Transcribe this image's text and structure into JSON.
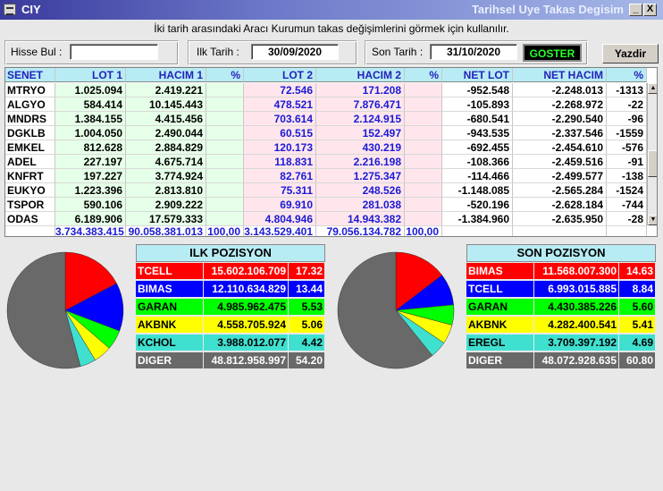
{
  "window": {
    "title_left": "CIY",
    "title_right": "Tarihsel Uye Takas Degisim",
    "minimize_label": "_",
    "close_label": "X"
  },
  "subtitle": "İki tarih arasındaki  Aracı Kurumun takas değişimlerini görmek için kullanılır.",
  "search": {
    "label": "Hisse Bul :",
    "value": ""
  },
  "start_date": {
    "label": "Ilk Tarih :",
    "value": "30/09/2020"
  },
  "end_date": {
    "label": "Son Tarih :",
    "value": "31/10/2020"
  },
  "buttons": {
    "goster": "GOSTER",
    "yazdir": "Yazdir"
  },
  "table": {
    "headers": [
      "SENET",
      "LOT 1",
      "HACIM 1",
      "%",
      "LOT 2",
      "HACIM 2",
      "%",
      "NET LOT",
      "NET HACIM",
      "%"
    ],
    "rows": [
      [
        "MTRYO",
        "1.025.094",
        "2.419.221",
        "",
        "72.546",
        "171.208",
        "",
        "-952.548",
        "-2.248.013",
        "-1313"
      ],
      [
        "ALGYO",
        "584.414",
        "10.145.443",
        "",
        "478.521",
        "7.876.471",
        "",
        "-105.893",
        "-2.268.972",
        "-22"
      ],
      [
        "MNDRS",
        "1.384.155",
        "4.415.456",
        "",
        "703.614",
        "2.124.915",
        "",
        "-680.541",
        "-2.290.540",
        "-96"
      ],
      [
        "DGKLB",
        "1.004.050",
        "2.490.044",
        "",
        "60.515",
        "152.497",
        "",
        "-943.535",
        "-2.337.546",
        "-1559"
      ],
      [
        "EMKEL",
        "812.628",
        "2.884.829",
        "",
        "120.173",
        "430.219",
        "",
        "-692.455",
        "-2.454.610",
        "-576"
      ],
      [
        "ADEL",
        "227.197",
        "4.675.714",
        "",
        "118.831",
        "2.216.198",
        "",
        "-108.366",
        "-2.459.516",
        "-91"
      ],
      [
        "KNFRT",
        "197.227",
        "3.774.924",
        "",
        "82.761",
        "1.275.347",
        "",
        "-114.466",
        "-2.499.577",
        "-138"
      ],
      [
        "EUKYO",
        "1.223.396",
        "2.813.810",
        "",
        "75.311",
        "248.526",
        "",
        "-1.148.085",
        "-2.565.284",
        "-1524"
      ],
      [
        "TSPOR",
        "590.106",
        "2.909.222",
        "",
        "69.910",
        "281.038",
        "",
        "-520.196",
        "-2.628.184",
        "-744"
      ],
      [
        "ODAS",
        "6.189.906",
        "17.579.333",
        "",
        "4.804.946",
        "14.943.382",
        "",
        "-1.384.960",
        "-2.635.950",
        "-28"
      ]
    ],
    "totals": [
      "",
      "3.734.383.415",
      "90.058.381.013",
      "100,00",
      "3.143.529.401",
      "79.056.134.782",
      "100,00",
      "",
      "",
      ""
    ]
  },
  "ilk_pozisyon": {
    "title": "ILK POZISYON",
    "rows": [
      {
        "name": "TCELL",
        "value": "15.602.106.709",
        "pct": "17.32",
        "pct_num": 17.32,
        "color": "#ff0000",
        "text": "#ffffff"
      },
      {
        "name": "BIMAS",
        "value": "12.110.634.829",
        "pct": "13.44",
        "pct_num": 13.44,
        "color": "#0000ff",
        "text": "#ffffff"
      },
      {
        "name": "GARAN",
        "value": "4.985.962.475",
        "pct": "5.53",
        "pct_num": 5.53,
        "color": "#00ff00",
        "text": "#000000"
      },
      {
        "name": "AKBNK",
        "value": "4.558.705.924",
        "pct": "5.06",
        "pct_num": 5.06,
        "color": "#ffff00",
        "text": "#000000"
      },
      {
        "name": "KCHOL",
        "value": "3.988.012.077",
        "pct": "4.42",
        "pct_num": 4.42,
        "color": "#40e0d0",
        "text": "#000000"
      },
      {
        "name": "DIGER",
        "value": "48.812.958.997",
        "pct": "54.20",
        "pct_num": 54.2,
        "color": "#696969",
        "text": "#ffffff"
      }
    ]
  },
  "son_pozisyon": {
    "title": "SON POZISYON",
    "rows": [
      {
        "name": "BIMAS",
        "value": "11.568.007.300",
        "pct": "14.63",
        "pct_num": 14.63,
        "color": "#ff0000",
        "text": "#ffffff"
      },
      {
        "name": "TCELL",
        "value": "6.993.015.885",
        "pct": "8.84",
        "pct_num": 8.84,
        "color": "#0000ff",
        "text": "#ffffff"
      },
      {
        "name": "GARAN",
        "value": "4.430.385.226",
        "pct": "5.60",
        "pct_num": 5.6,
        "color": "#00ff00",
        "text": "#000000"
      },
      {
        "name": "AKBNK",
        "value": "4.282.400.541",
        "pct": "5.41",
        "pct_num": 5.41,
        "color": "#ffff00",
        "text": "#000000"
      },
      {
        "name": "EREGL",
        "value": "3.709.397.192",
        "pct": "4.69",
        "pct_num": 4.69,
        "color": "#40e0d0",
        "text": "#000000"
      },
      {
        "name": "DIGER",
        "value": "48.072.928.635",
        "pct": "60.80",
        "pct_num": 60.8,
        "color": "#696969",
        "text": "#ffffff"
      }
    ]
  }
}
